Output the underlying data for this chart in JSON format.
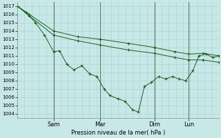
{
  "bg_color": "#c8e8e8",
  "grid_color": "#aad4d4",
  "line_color": "#1a5c1a",
  "xlabel": "Pression niveau de la mer( hPa )",
  "ylim": [
    1003.5,
    1017.5
  ],
  "yticks": [
    1004,
    1005,
    1006,
    1007,
    1008,
    1009,
    1010,
    1011,
    1012,
    1013,
    1014,
    1015,
    1016,
    1017
  ],
  "ytick_fontsize": 5.0,
  "xtick_labels": [
    "Sam",
    "Mar",
    "Dim",
    "Lun"
  ],
  "xtick_positions": [
    0.18,
    0.41,
    0.68,
    0.85
  ],
  "xlim": [
    0,
    1.0
  ],
  "figsize": [
    3.2,
    2.0
  ],
  "dpi": 100,
  "line1_x": [
    0.0,
    0.06,
    0.18,
    0.3,
    0.41,
    0.55,
    0.68,
    0.78,
    0.85,
    0.92,
    1.0
  ],
  "line1_y": [
    1017,
    1016,
    1014,
    1013.3,
    1013.0,
    1012.5,
    1012.0,
    1011.5,
    1011.2,
    1011.3,
    1011.0
  ],
  "line2_x": [
    0.0,
    0.06,
    0.18,
    0.3,
    0.41,
    0.55,
    0.68,
    0.78,
    0.85,
    0.92,
    1.0
  ],
  "line2_y": [
    1017,
    1015.8,
    1013.5,
    1012.8,
    1012.3,
    1011.7,
    1011.3,
    1010.8,
    1010.5,
    1010.5,
    1010.2
  ],
  "line3_x": [
    0.0,
    0.045,
    0.09,
    0.135,
    0.18,
    0.21,
    0.245,
    0.28,
    0.32,
    0.36,
    0.395,
    0.43,
    0.46,
    0.5,
    0.535,
    0.57,
    0.6,
    0.63,
    0.665,
    0.7,
    0.735,
    0.77,
    0.8,
    0.835,
    0.87,
    0.9,
    0.935,
    0.97,
    1.0
  ],
  "line3_y": [
    1017,
    1016.2,
    1015,
    1013.5,
    1011.5,
    1011.6,
    1010.0,
    1009.3,
    1009.8,
    1008.8,
    1008.5,
    1007.0,
    1006.2,
    1005.8,
    1005.5,
    1004.5,
    1004.2,
    1007.3,
    1007.8,
    1008.5,
    1008.2,
    1008.5,
    1008.2,
    1008.0,
    1009.2,
    1011.0,
    1011.2,
    1010.8,
    1011.0
  ]
}
